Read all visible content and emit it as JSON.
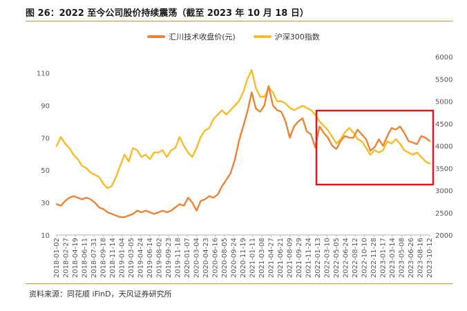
{
  "figure": {
    "title": "图 26：2022 至今公司股价持续震荡（截至 2023 年 10 月 18 日）",
    "source": "资料来源：同花顺 iFinD，天风证券研究所"
  },
  "chart_data": {
    "type": "line",
    "legend": [
      "汇川技术收盘价(元)",
      "沪深300指数"
    ],
    "colors": {
      "stock": "#ee8233",
      "index": "#f7bb25",
      "highlight": "#e8161b"
    },
    "x_tick_labels": [
      "2018-01-02",
      "2018-02-27",
      "2018-04-19",
      "2018-06-11",
      "2018-07-31",
      "2018-09-18",
      "2018-11-14",
      "2019-01-04",
      "2019-03-05",
      "2019-04-24",
      "2019-06-14",
      "2019-08-02",
      "2019-09-23",
      "2019-11-18",
      "2020-01-07",
      "2020-03-04",
      "2020-04-23",
      "2020-06-16",
      "2020-08-05",
      "2020-09-24",
      "2020-11-19",
      "2021-01-11",
      "2021-03-08",
      "2021-04-27",
      "2021-06-21",
      "2021-08-09",
      "2021-09-29",
      "2021-11-24",
      "2022-01-13",
      "2022-03-10",
      "2022-05-05",
      "2022-06-24",
      "2022-08-12",
      "2022-10-10",
      "2022-11-28",
      "2023-01-17",
      "2023-03-14",
      "2023-05-08",
      "2023-06-26",
      "2023-08-16",
      "2023-10-12"
    ],
    "y_left": {
      "label": "汇川技术收盘价(元)",
      "ticks": [
        10,
        30,
        50,
        70,
        90,
        110
      ],
      "range": [
        10,
        120
      ]
    },
    "y_right": {
      "label": "沪深300指数",
      "ticks": [
        2000,
        2500,
        3000,
        3500,
        4000,
        4500,
        5000,
        5500,
        6000
      ],
      "range": [
        2000,
        6000
      ]
    },
    "highlight_range": {
      "from": "2022-01-13",
      "to": "2023-10-18",
      "y_from": 3130,
      "y_to": 4790
    },
    "series": [
      {
        "name": "汇川技术收盘价(元)",
        "axis": "left",
        "values": [
          29,
          28,
          31,
          33,
          34,
          33,
          32,
          33,
          32,
          30,
          27,
          26,
          24,
          23,
          22,
          21,
          21,
          22,
          23,
          25,
          24,
          25,
          24,
          23,
          24,
          25,
          24,
          25,
          27,
          29,
          28,
          33,
          30,
          25,
          31,
          32,
          34,
          33,
          35,
          40,
          44,
          48,
          56,
          68,
          77,
          86,
          98,
          88,
          86,
          90,
          102,
          90,
          87,
          86,
          80,
          70,
          77,
          80,
          82,
          74,
          72,
          64,
          77,
          73,
          70,
          65,
          63,
          68,
          71,
          70,
          70,
          75,
          72,
          69,
          62,
          64,
          69,
          65,
          71,
          76,
          75,
          77,
          73,
          68,
          67,
          66,
          71,
          70,
          68
        ]
      },
      {
        "name": "沪深300指数",
        "axis": "right",
        "values": [
          4000,
          4200,
          4050,
          3950,
          3800,
          3700,
          3550,
          3500,
          3400,
          3350,
          3300,
          3150,
          3050,
          3100,
          3300,
          3550,
          3800,
          3650,
          3950,
          3900,
          3750,
          3800,
          3700,
          3850,
          3850,
          3900,
          3750,
          3900,
          3950,
          4200,
          4000,
          3850,
          3750,
          3950,
          4200,
          4350,
          4400,
          4600,
          4700,
          4800,
          4700,
          4800,
          4900,
          5000,
          5200,
          5500,
          5700,
          5300,
          5100,
          5100,
          5300,
          5200,
          5000,
          5000,
          4950,
          4850,
          4800,
          4850,
          4900,
          4850,
          4800,
          4700,
          4550,
          4450,
          4350,
          4200,
          4050,
          4150,
          4300,
          4400,
          4300,
          4150,
          4100,
          3950,
          3800,
          3900,
          3850,
          3900,
          4100,
          4050,
          4150,
          4050,
          3900,
          3850,
          3800,
          3850,
          3750,
          3650,
          3600
        ]
      }
    ]
  }
}
